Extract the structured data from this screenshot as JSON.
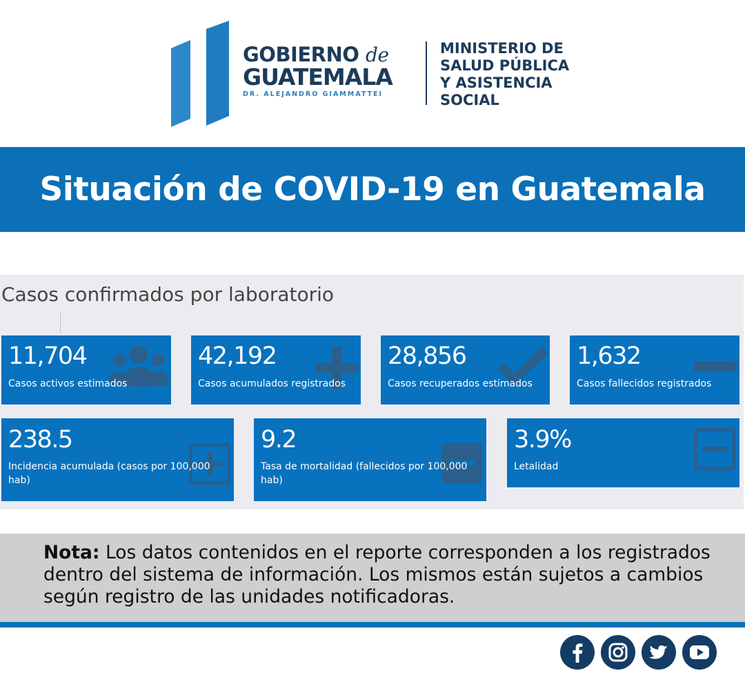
{
  "header": {
    "gobierno_line1": "GOBIERNO",
    "gobierno_de": "de",
    "gobierno_line2": "GUATEMALA",
    "gobierno_line3": "DR. ALEJANDRO GIAMMATTEI",
    "ministry_lines": [
      "MINISTERIO DE",
      "SALUD PÚBLICA",
      "Y ASISTENCIA",
      "SOCIAL"
    ]
  },
  "banner": {
    "title": "Situación de COVID-19 en Guatemala"
  },
  "dashboard": {
    "section_title": "Casos confirmados por laboratorio",
    "cards": [
      {
        "value": "11,704",
        "label": "Casos activos estimados",
        "icon": "users-icon"
      },
      {
        "value": "42,192",
        "label": "Casos acumulados registrados",
        "icon": "plus-icon"
      },
      {
        "value": "28,856",
        "label": "Casos recuperados estimados",
        "icon": "check-icon"
      },
      {
        "value": "1,632",
        "label": "Casos fallecidos registrados",
        "icon": "minus-icon"
      },
      {
        "value": "238.5",
        "label": "Incidencia acumulada (casos por 100,000 hab)",
        "icon": "plus-square-icon"
      },
      {
        "value": "9.2",
        "label": "Tasa de mortalidad (fallecidos por 100,000 hab)",
        "icon": "minus-square-icon"
      },
      {
        "value": "3.9%",
        "label": "Letalidad",
        "icon": "minus-square-outline-icon"
      }
    ]
  },
  "note": {
    "label": "Nota:",
    "text": " Los datos contenidos en el reporte corresponden a los registrados dentro del sistema de información. Los mismos están sujetos a cambios según registro de las unidades notificadoras."
  },
  "social": [
    "facebook-icon",
    "instagram-icon",
    "twitter-icon",
    "youtube-icon"
  ],
  "colors": {
    "brand_blue": "#0b70b8",
    "card_blue": "#0872be",
    "navy": "#1c3b5a",
    "note_gray": "#cfcfcf",
    "panel_gray": "#ececf0"
  }
}
